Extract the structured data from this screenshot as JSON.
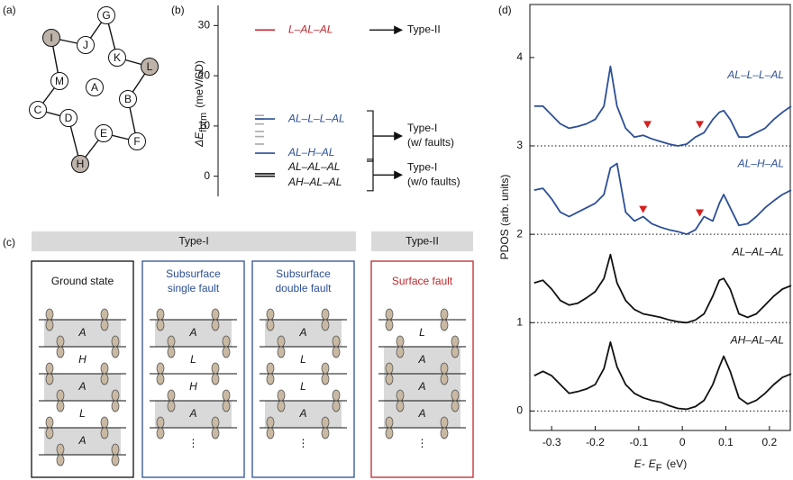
{
  "panel_labels": [
    "(a)",
    "(b)",
    "(c)",
    "(d)"
  ],
  "diagram_a": {
    "nodes": [
      {
        "label": "A",
        "shaded": false
      },
      {
        "label": "G",
        "shaded": false
      },
      {
        "label": "J",
        "shaded": false
      },
      {
        "label": "I",
        "shaded": true
      },
      {
        "label": "M",
        "shaded": false
      },
      {
        "label": "C",
        "shaded": false
      },
      {
        "label": "D",
        "shaded": false
      },
      {
        "label": "H",
        "shaded": true
      },
      {
        "label": "E",
        "shaded": false
      },
      {
        "label": "F",
        "shaded": false
      },
      {
        "label": "B",
        "shaded": false
      },
      {
        "label": "L",
        "shaded": true
      },
      {
        "label": "K",
        "shaded": false
      }
    ]
  },
  "chart_data": [
    {
      "type": "level",
      "ylabel": [
        "ΔE",
        "form",
        "(meV/SD)"
      ],
      "ylim": [
        -4,
        34
      ],
      "yticks": [
        0,
        10,
        20,
        30
      ],
      "groups": [
        {
          "label": [
            "Type-II"
          ],
          "series": [
            {
              "name": "L–AL–AL",
              "color": "#c0272d",
              "value": 29.1
            }
          ]
        },
        {
          "label": [
            "Type-I",
            "(w/ faults)"
          ],
          "series": [
            {
              "name": "AL–L–L–AL",
              "color": "#2c4f97",
              "value": 11.4
            },
            {
              "name": "AL–H–AL",
              "color": "#2c4f97",
              "value": 4.6
            }
          ]
        },
        {
          "label": [
            "Type-I",
            "(w/o faults)"
          ],
          "series": [
            {
              "name": "AL–AL–AL",
              "color": "#111111",
              "value": 0.5
            },
            {
              "name": "AH–AL–AL",
              "color": "#111111",
              "value": 0
            }
          ]
        }
      ],
      "other_levels": {
        "color": "#aaaaaa",
        "values": [
          12.1,
          11.4,
          10.4,
          8.9,
          7.9,
          6.4
        ]
      }
    },
    {
      "type": "line",
      "xlabel": [
        "E-",
        "E",
        "F",
        "(eV)"
      ],
      "ylabel": "PDOS (arb. units)",
      "xlim": [
        -0.35,
        0.25
      ],
      "xticks": [
        -0.3,
        -0.2,
        -0.1,
        0,
        0.1,
        0.2
      ],
      "ylim": [
        -0.22,
        4.6
      ],
      "yticks": [
        0,
        1,
        2,
        3,
        4
      ],
      "baselines": [
        0,
        1,
        2,
        3
      ],
      "x": [
        -0.34,
        -0.32,
        -0.3,
        -0.28,
        -0.26,
        -0.24,
        -0.22,
        -0.2,
        -0.18,
        -0.165,
        -0.15,
        -0.13,
        -0.11,
        -0.09,
        -0.07,
        -0.05,
        -0.03,
        -0.01,
        0.01,
        0.03,
        0.05,
        0.07,
        0.085,
        0.095,
        0.11,
        0.13,
        0.15,
        0.17,
        0.19,
        0.21,
        0.23,
        0.25
      ],
      "series": [
        {
          "name": "AL–L–L–AL",
          "color": "#2c4f97",
          "values": [
            3.45,
            3.45,
            3.35,
            3.25,
            3.2,
            3.22,
            3.25,
            3.3,
            3.45,
            3.9,
            3.45,
            3.2,
            3.1,
            3.12,
            3.08,
            3.05,
            3.02,
            3.0,
            3.02,
            3.1,
            3.15,
            3.3,
            3.38,
            3.4,
            3.3,
            3.1,
            3.1,
            3.15,
            3.2,
            3.3,
            3.38,
            3.45
          ]
        },
        {
          "name": "AL–H–AL",
          "color": "#2c4f97",
          "values": [
            2.5,
            2.52,
            2.4,
            2.25,
            2.2,
            2.25,
            2.3,
            2.35,
            2.45,
            2.75,
            2.8,
            2.25,
            2.15,
            2.2,
            2.12,
            2.08,
            2.05,
            2.03,
            2.0,
            2.05,
            2.2,
            2.15,
            2.35,
            2.45,
            2.3,
            2.1,
            2.12,
            2.2,
            2.3,
            2.38,
            2.45,
            2.5
          ]
        },
        {
          "name": "AL–AL–AL",
          "color": "#111111",
          "values": [
            1.45,
            1.48,
            1.38,
            1.25,
            1.2,
            1.22,
            1.28,
            1.35,
            1.5,
            1.77,
            1.45,
            1.25,
            1.15,
            1.1,
            1.08,
            1.06,
            1.03,
            1.01,
            1.0,
            1.03,
            1.1,
            1.3,
            1.48,
            1.5,
            1.38,
            1.1,
            1.06,
            1.1,
            1.2,
            1.3,
            1.38,
            1.42
          ]
        },
        {
          "name": "AH–AL–AL",
          "color": "#111111",
          "values": [
            0.4,
            0.45,
            0.4,
            0.3,
            0.2,
            0.22,
            0.25,
            0.3,
            0.48,
            0.78,
            0.5,
            0.3,
            0.2,
            0.15,
            0.12,
            0.1,
            0.06,
            0.03,
            0.02,
            0.05,
            0.12,
            0.3,
            0.5,
            0.62,
            0.45,
            0.15,
            0.08,
            0.12,
            0.2,
            0.3,
            0.38,
            0.42
          ]
        }
      ],
      "markers": {
        "color": "#d62020",
        "points": [
          {
            "x": -0.08,
            "y": 3.2
          },
          {
            "x": 0.04,
            "y": 3.2
          },
          {
            "x": -0.09,
            "y": 2.24
          },
          {
            "x": 0.04,
            "y": 2.2
          }
        ]
      }
    }
  ],
  "diagram_c": {
    "groups": [
      "Type-I",
      "Type-II"
    ],
    "boxes": [
      {
        "title": [
          "Ground state"
        ],
        "color": "#111111",
        "layers": [
          "A",
          "H",
          "A",
          "L",
          "A"
        ]
      },
      {
        "title": [
          "Subsurface",
          "single fault"
        ],
        "color": "#2c4f97",
        "layers": [
          "A",
          "L",
          "H",
          "A"
        ],
        "continuation": "⋮"
      },
      {
        "title": [
          "Subsurface",
          "double fault"
        ],
        "color": "#2c4f97",
        "layers": [
          "A",
          "L",
          "L",
          "A"
        ],
        "continuation": "⋮"
      },
      {
        "title": [
          "Surface fault"
        ],
        "color": "#c0272d",
        "layers": [
          "L",
          "A",
          "A",
          "A"
        ],
        "continuation": "⋮"
      }
    ]
  }
}
